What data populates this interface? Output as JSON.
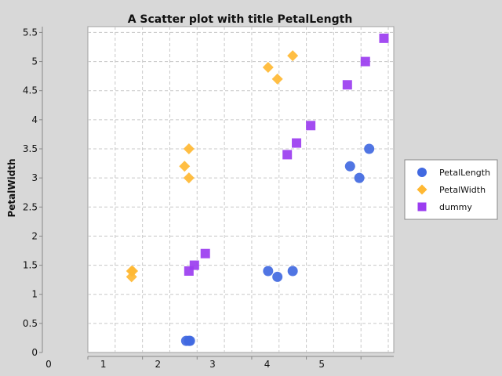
{
  "chart_data": {
    "type": "scatter",
    "title": "A Scatter plot with title PetalLength",
    "xlabel": "",
    "ylabel": "PetalWidth",
    "xlim": [
      0,
      5.6
    ],
    "ylim": [
      0,
      5.6
    ],
    "x_ticks": [
      "0",
      "1",
      "2",
      "3",
      "4",
      "5"
    ],
    "y_ticks": [
      "0",
      "0.5",
      "1",
      "1.5",
      "2",
      "2.5",
      "3",
      "3.5",
      "4",
      "4.5",
      "5",
      "5.5"
    ],
    "grid": true,
    "legend_position": "right",
    "series": [
      {
        "name": "PetalLength",
        "marker": "circle",
        "color": "#4169e1",
        "points": [
          {
            "x": 1.8,
            "y": 0.2
          },
          {
            "x": 1.85,
            "y": 0.2
          },
          {
            "x": 1.87,
            "y": 0.2
          },
          {
            "x": 3.3,
            "y": 1.4
          },
          {
            "x": 3.47,
            "y": 1.3
          },
          {
            "x": 3.75,
            "y": 1.4
          },
          {
            "x": 4.8,
            "y": 3.2
          },
          {
            "x": 4.97,
            "y": 3.0
          },
          {
            "x": 5.15,
            "y": 3.5
          }
        ]
      },
      {
        "name": "PetalWidth",
        "marker": "diamond",
        "color": "#ffb833",
        "points": [
          {
            "x": 0.8,
            "y": 1.4
          },
          {
            "x": 0.82,
            "y": 1.4
          },
          {
            "x": 0.8,
            "y": 1.3
          },
          {
            "x": 1.77,
            "y": 3.2
          },
          {
            "x": 1.85,
            "y": 3.5
          },
          {
            "x": 1.85,
            "y": 3.0
          },
          {
            "x": 3.3,
            "y": 4.9
          },
          {
            "x": 3.47,
            "y": 4.7
          },
          {
            "x": 3.75,
            "y": 5.1
          }
        ]
      },
      {
        "name": "dummy",
        "marker": "square",
        "color": "#9b3df0",
        "points": [
          {
            "x": 1.85,
            "y": 1.4
          },
          {
            "x": 1.95,
            "y": 1.5
          },
          {
            "x": 2.15,
            "y": 1.7
          },
          {
            "x": 3.65,
            "y": 3.4
          },
          {
            "x": 3.82,
            "y": 3.6
          },
          {
            "x": 4.08,
            "y": 3.9
          },
          {
            "x": 4.75,
            "y": 4.6
          },
          {
            "x": 5.08,
            "y": 5.0
          },
          {
            "x": 5.42,
            "y": 5.4
          }
        ]
      }
    ]
  }
}
